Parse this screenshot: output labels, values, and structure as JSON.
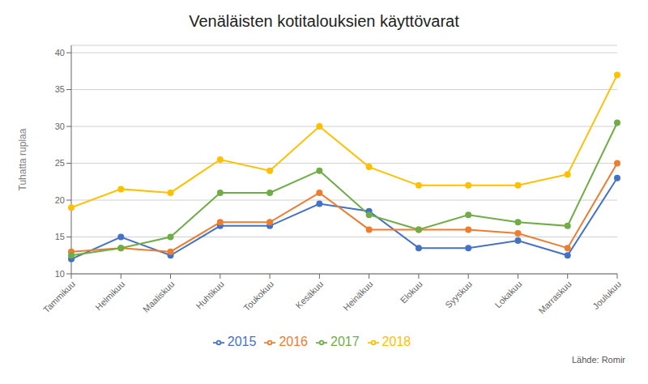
{
  "chart_data": {
    "type": "line",
    "title": "Venäläisten kotitalouksien käyttövarat",
    "ylabel": "Tuhatta ruplaa",
    "source": "Lähde: Romir",
    "categories": [
      "Tammikuu",
      "Helmikuu",
      "Maaliskuu",
      "Huhtikuu",
      "Toukokuu",
      "Kesäkuu",
      "Heinäkuu",
      "Elokuu",
      "Syyskuu",
      "Lokakuu",
      "Marraskuu",
      "Joulukuu"
    ],
    "series": [
      {
        "name": "2015",
        "color": "#4472C4",
        "values": [
          12.0,
          15.0,
          12.5,
          16.5,
          16.5,
          19.5,
          18.5,
          13.5,
          13.5,
          14.5,
          12.5,
          23.0
        ]
      },
      {
        "name": "2016",
        "color": "#ED7D31",
        "values": [
          13.0,
          13.5,
          13.0,
          17.0,
          17.0,
          21.0,
          16.0,
          16.0,
          16.0,
          15.5,
          13.5,
          25.0
        ]
      },
      {
        "name": "2017",
        "color": "#70AD47",
        "values": [
          12.5,
          13.5,
          15.0,
          21.0,
          21.0,
          24.0,
          18.0,
          16.0,
          18.0,
          17.0,
          16.5,
          30.5
        ]
      },
      {
        "name": "2018",
        "color": "#FFC000",
        "values": [
          19.0,
          21.5,
          21.0,
          25.5,
          24.0,
          30.0,
          24.5,
          22.0,
          22.0,
          22.0,
          23.5,
          37.0
        ]
      }
    ],
    "ylim": [
      10,
      41
    ],
    "yticks": [
      10,
      15,
      20,
      25,
      30,
      35,
      40
    ],
    "grid": true,
    "legend": "bottom",
    "marker": "circle"
  }
}
